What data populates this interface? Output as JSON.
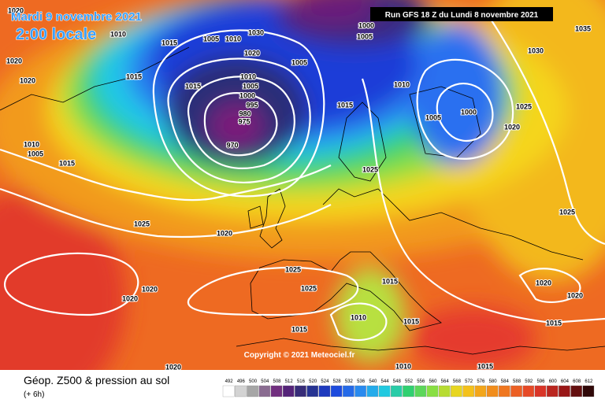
{
  "header": {
    "date": "Mardi 9 novembre 2021",
    "time": "2:00 locale",
    "run": "Run GFS 18 Z du Lundi 8 novembre 2021"
  },
  "copyright": "Copyright © 2021 Meteociel.fr",
  "footer": {
    "title": "Géop. Z500 & pression au sol",
    "subtitle": "(+ 6h)"
  },
  "legend": {
    "labels": [
      492,
      496,
      500,
      504,
      508,
      512,
      516,
      520,
      524,
      528,
      532,
      536,
      540,
      544,
      548,
      552,
      556,
      560,
      564,
      568,
      572,
      576,
      580,
      584,
      588,
      592,
      596,
      600,
      604,
      608,
      612
    ]
  },
  "isobar_labels": [
    "1020",
    "1010",
    "1015",
    "1005",
    "1010",
    "1030",
    "1020",
    "1005",
    "1000",
    "1005",
    "1010",
    "1005",
    "1000",
    "1030",
    "1025",
    "1020",
    "1035",
    "1020",
    "1020",
    "1015",
    "1015",
    "1010",
    "1005",
    "1000",
    "995",
    "980",
    "975",
    "970",
    "1015",
    "1025",
    "1010",
    "1005",
    "1015",
    "1025",
    "1020",
    "1025",
    "1025",
    "1025",
    "1020",
    "1020",
    "1015",
    "1020",
    "1020",
    "1010",
    "1015",
    "1015",
    "1015",
    "1010",
    "1015",
    "1020"
  ]
}
